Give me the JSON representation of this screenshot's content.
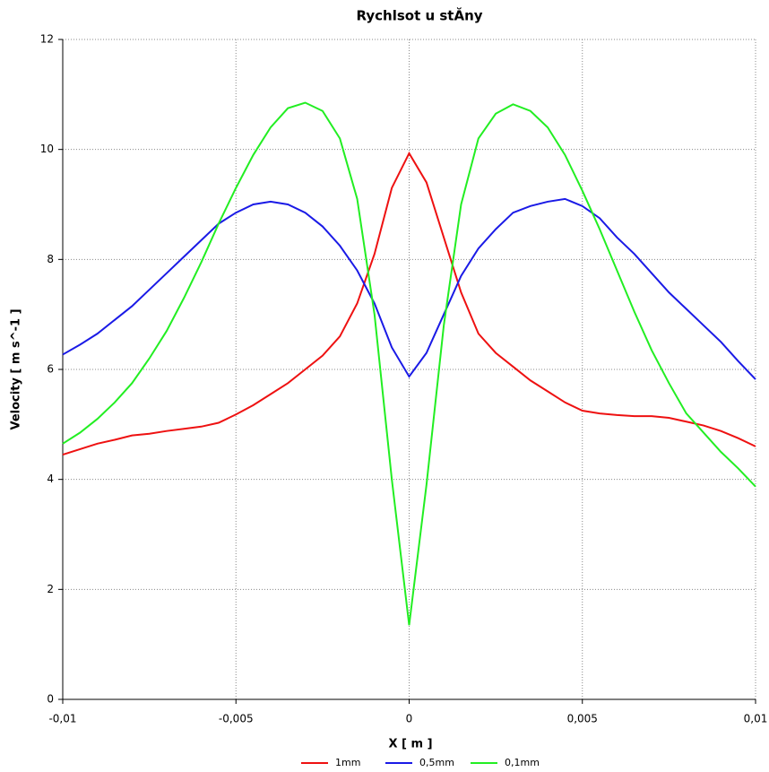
{
  "chart_data": {
    "type": "line",
    "title": "Rychlsot u stĂny",
    "x_label": "X [ m ]",
    "y_label": "Velocity [ m s^-1 ]",
    "x": [
      -0.01,
      -0.0095,
      -0.009,
      -0.0085,
      -0.008,
      -0.0075,
      -0.007,
      -0.0065,
      -0.006,
      -0.0055,
      -0.005,
      -0.0045,
      -0.004,
      -0.0035,
      -0.003,
      -0.0025,
      -0.002,
      -0.0015,
      -0.001,
      -0.0005,
      0,
      0.0005,
      0.001,
      0.0015,
      0.002,
      0.0025,
      0.003,
      0.0035,
      0.004,
      0.0045,
      0.005,
      0.0055,
      0.006,
      0.0065,
      0.007,
      0.0075,
      0.008,
      0.0085,
      0.009,
      0.0095,
      0.01
    ],
    "series": [
      {
        "name": "1mm",
        "color": "#ee1111",
        "values": [
          4.45,
          4.55,
          4.65,
          4.72,
          4.8,
          4.83,
          4.88,
          4.92,
          4.96,
          5.03,
          5.18,
          5.35,
          5.55,
          5.75,
          6.0,
          6.25,
          6.6,
          7.2,
          8.1,
          9.3,
          9.93,
          9.4,
          8.4,
          7.4,
          6.65,
          6.3,
          6.05,
          5.8,
          5.6,
          5.4,
          5.25,
          5.2,
          5.17,
          5.15,
          5.15,
          5.12,
          5.05,
          4.98,
          4.88,
          4.75,
          4.6
        ]
      },
      {
        "name": "0,5mm",
        "color": "#1a1ae6",
        "values": [
          6.27,
          6.45,
          6.65,
          6.9,
          7.15,
          7.45,
          7.75,
          8.05,
          8.35,
          8.65,
          8.85,
          9.0,
          9.05,
          9.0,
          8.85,
          8.6,
          8.25,
          7.8,
          7.2,
          6.4,
          5.87,
          6.3,
          7.0,
          7.7,
          8.2,
          8.55,
          8.85,
          8.97,
          9.05,
          9.1,
          8.97,
          8.75,
          8.4,
          8.1,
          7.75,
          7.4,
          7.1,
          6.8,
          6.5,
          6.15,
          5.82
        ]
      },
      {
        "name": "0,1mm",
        "color": "#22ee22",
        "values": [
          4.65,
          4.85,
          5.1,
          5.4,
          5.75,
          6.2,
          6.7,
          7.3,
          7.95,
          8.65,
          9.3,
          9.9,
          10.4,
          10.75,
          10.85,
          10.7,
          10.2,
          9.1,
          7.0,
          4.0,
          1.35,
          3.9,
          6.8,
          9.0,
          10.2,
          10.65,
          10.82,
          10.7,
          10.4,
          9.9,
          9.25,
          8.55,
          7.8,
          7.05,
          6.35,
          5.75,
          5.2,
          4.85,
          4.5,
          4.2,
          3.87
        ]
      }
    ],
    "xlim": [
      -0.01,
      0.01
    ],
    "xticks": [
      {
        "value": -0.01,
        "label": "-0,01"
      },
      {
        "value": -0.005,
        "label": "-0,005"
      },
      0,
      {
        "value": 0.005,
        "label": "0,005"
      },
      {
        "value": 0.01,
        "label": "0,01"
      }
    ],
    "ylim": [
      0,
      12
    ],
    "yticks": [
      0,
      2,
      4,
      6,
      8,
      10,
      12
    ],
    "grid": true,
    "legend": "bottom"
  }
}
